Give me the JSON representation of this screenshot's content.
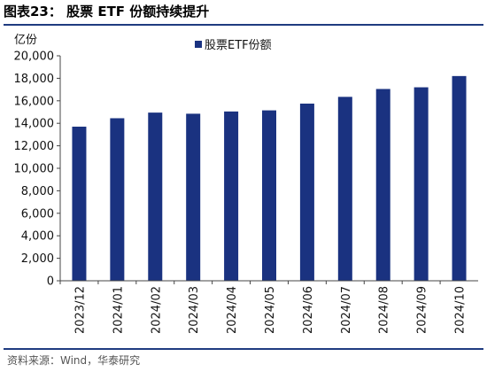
{
  "figure_title": "图表23：  股票 ETF 份额持续提升",
  "source_note": "资料来源：Wind，华泰研究",
  "colors": {
    "bar": "#1a3280",
    "rule": "#1f3b80"
  },
  "chart_data": {
    "type": "bar",
    "title": "",
    "ylabel": "亿份",
    "xlabel": "",
    "ylim": [
      0,
      20000
    ],
    "yticks": [
      0,
      2000,
      4000,
      6000,
      8000,
      10000,
      12000,
      14000,
      16000,
      18000,
      20000
    ],
    "ytick_labels": [
      "0",
      "2,000",
      "4,000",
      "6,000",
      "8,000",
      "10,000",
      "12,000",
      "14,000",
      "16,000",
      "18,000",
      "20,000"
    ],
    "categories": [
      "2023/12",
      "2024/01",
      "2024/02",
      "2024/03",
      "2024/04",
      "2024/05",
      "2024/06",
      "2024/07",
      "2024/08",
      "2024/09",
      "2024/10"
    ],
    "series": [
      {
        "name": "股票ETF份额",
        "values": [
          13700,
          14450,
          14950,
          14850,
          15050,
          15150,
          15750,
          16350,
          17050,
          17200,
          18200
        ]
      }
    ],
    "legend_position": "top-center",
    "grid": false
  }
}
